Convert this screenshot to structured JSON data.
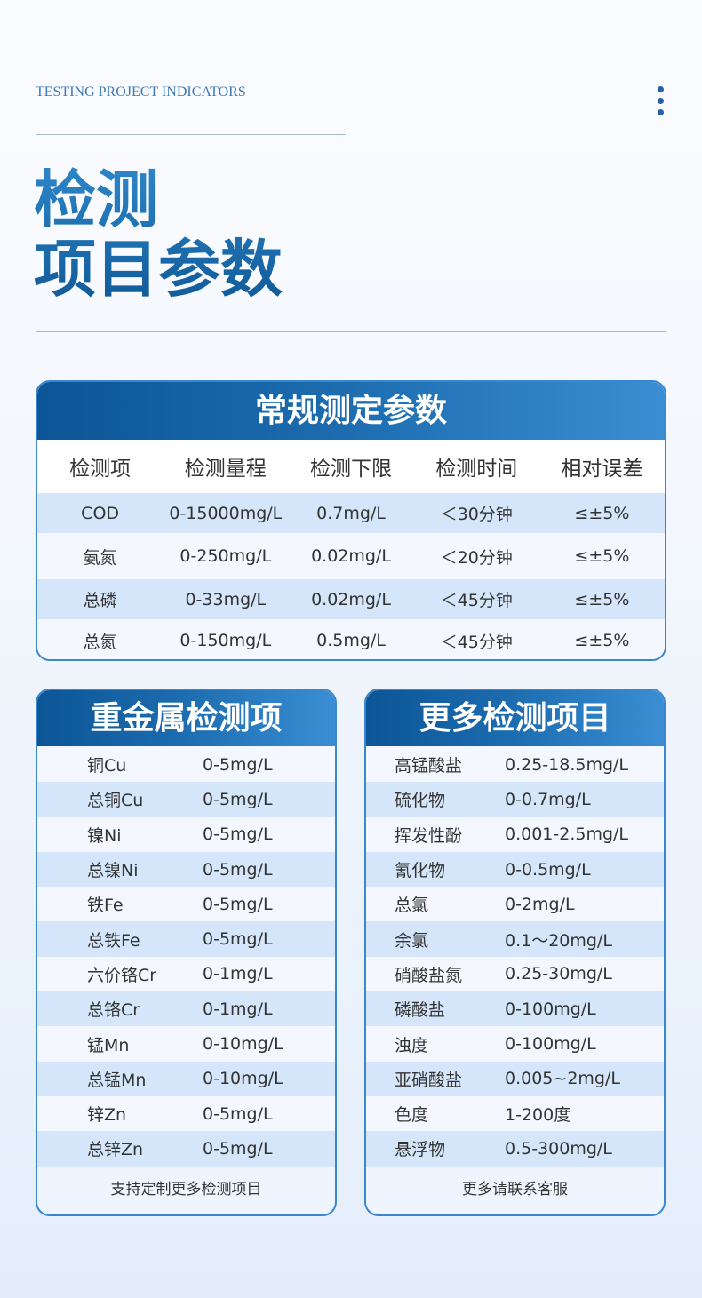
{
  "header": {
    "eyebrow": "TESTING PROJECT INDICATORS",
    "title_line1": "检测",
    "title_line2": "项目参数",
    "menu_icon": "more-vertical-icon"
  },
  "colors": {
    "accent": "#1d6aac",
    "header_gradient": [
      "#0c5596",
      "#3b8ed3"
    ],
    "row_blue": "#d5e6fa"
  },
  "main_table": {
    "title": "常规测定参数",
    "columns": [
      "检测项",
      "检测量程",
      "检测下限",
      "检测时间",
      "相对误差"
    ],
    "rows": [
      [
        "COD",
        "0-15000mg/L",
        "0.7mg/L",
        "＜30分钟",
        "≤±5%"
      ],
      [
        "氨氮",
        "0-250mg/L",
        "0.02mg/L",
        "＜20分钟",
        "≤±5%"
      ],
      [
        "总磷",
        "0-33mg/L",
        "0.02mg/L",
        "＜45分钟",
        "≤±5%"
      ],
      [
        "总氮",
        "0-150mg/L",
        "0.5mg/L",
        "＜45分钟",
        "≤±5%"
      ]
    ]
  },
  "heavy_metals": {
    "title": "重金属检测项",
    "rows": [
      [
        "铜Cu",
        "0-5mg/L"
      ],
      [
        "总铜Cu",
        "0-5mg/L"
      ],
      [
        "镍Ni",
        "0-5mg/L"
      ],
      [
        "总镍Ni",
        "0-5mg/L"
      ],
      [
        "铁Fe",
        "0-5mg/L"
      ],
      [
        "总铁Fe",
        "0-5mg/L"
      ],
      [
        "六价铬Cr",
        "0-1mg/L"
      ],
      [
        "总铬Cr",
        "0-1mg/L"
      ],
      [
        "锰Mn",
        "0-10mg/L"
      ],
      [
        "总锰Mn",
        "0-10mg/L"
      ],
      [
        "锌Zn",
        "0-5mg/L"
      ],
      [
        "总锌Zn",
        "0-5mg/L"
      ]
    ],
    "footer": "支持定制更多检测项目"
  },
  "more_items": {
    "title": "更多检测项目",
    "rows": [
      [
        "高锰酸盐",
        "0.25-18.5mg/L"
      ],
      [
        "硫化物",
        "0-0.7mg/L"
      ],
      [
        "挥发性酚",
        "0.001-2.5mg/L"
      ],
      [
        "氰化物",
        "0-0.5mg/L"
      ],
      [
        "总氯",
        "0-2mg/L"
      ],
      [
        "余氯",
        "0.1～20mg/L"
      ],
      [
        "硝酸盐氮",
        "0.25-30mg/L"
      ],
      [
        "磷酸盐",
        "0-100mg/L"
      ],
      [
        "浊度",
        "0-100mg/L"
      ],
      [
        "亚硝酸盐",
        "0.005~2mg/L"
      ],
      [
        "色度",
        "1-200度"
      ],
      [
        "悬浮物",
        "0.5-300mg/L"
      ]
    ],
    "footer": "更多请联系客服"
  }
}
